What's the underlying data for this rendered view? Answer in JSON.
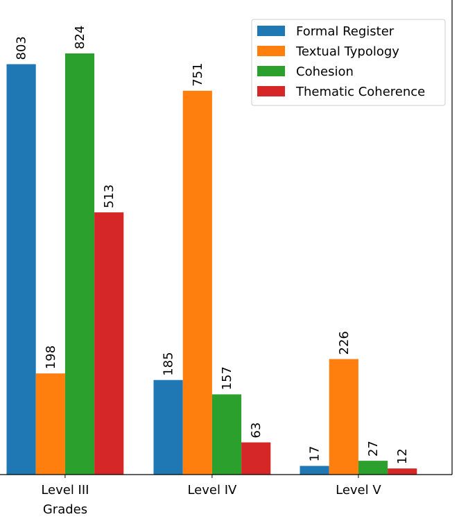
{
  "chart_data": {
    "type": "bar",
    "categories": [
      "Level III",
      "Level IV",
      "Level V"
    ],
    "xlabel": "Grades",
    "ylabel": "",
    "title": "",
    "ylim": [
      0,
      865
    ],
    "grid": false,
    "legend_position": "top-right",
    "series": [
      {
        "name": "Formal Register",
        "color": "#1f77b4",
        "values": [
          803,
          185,
          17
        ]
      },
      {
        "name": "Textual Typology",
        "color": "#ff7f0e",
        "values": [
          198,
          751,
          226
        ]
      },
      {
        "name": "Cohesion",
        "color": "#2ca02c",
        "values": [
          824,
          157,
          27
        ]
      },
      {
        "name": "Thematic Coherence",
        "color": "#d62728",
        "values": [
          513,
          63,
          12
        ]
      }
    ]
  }
}
